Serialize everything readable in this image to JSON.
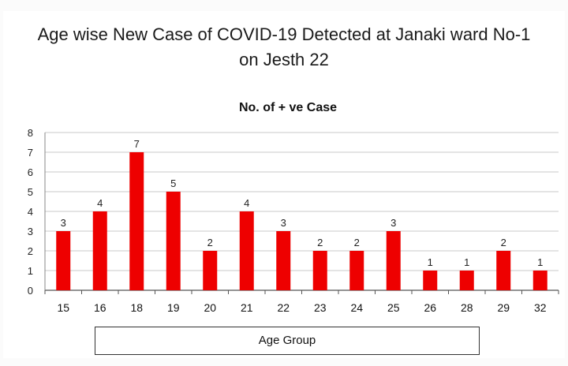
{
  "chart_data": {
    "type": "bar",
    "title": "Age wise New Case of COVID-19 Detected at Janaki ward No-1 on Jesth 22",
    "subtitle": "No. of + ve Case",
    "xlabel": "Age Group",
    "ylabel": "",
    "categories": [
      "15",
      "16",
      "18",
      "19",
      "20",
      "21",
      "22",
      "23",
      "24",
      "25",
      "26",
      "28",
      "29",
      "32"
    ],
    "values": [
      3,
      4,
      7,
      5,
      2,
      4,
      3,
      2,
      2,
      3,
      1,
      1,
      2,
      1
    ],
    "ylim": [
      0,
      8
    ],
    "yticks": [
      0,
      1,
      2,
      3,
      4,
      5,
      6,
      7,
      8
    ],
    "grid": true,
    "bar_color": "#ee0000",
    "data_labels": true
  }
}
